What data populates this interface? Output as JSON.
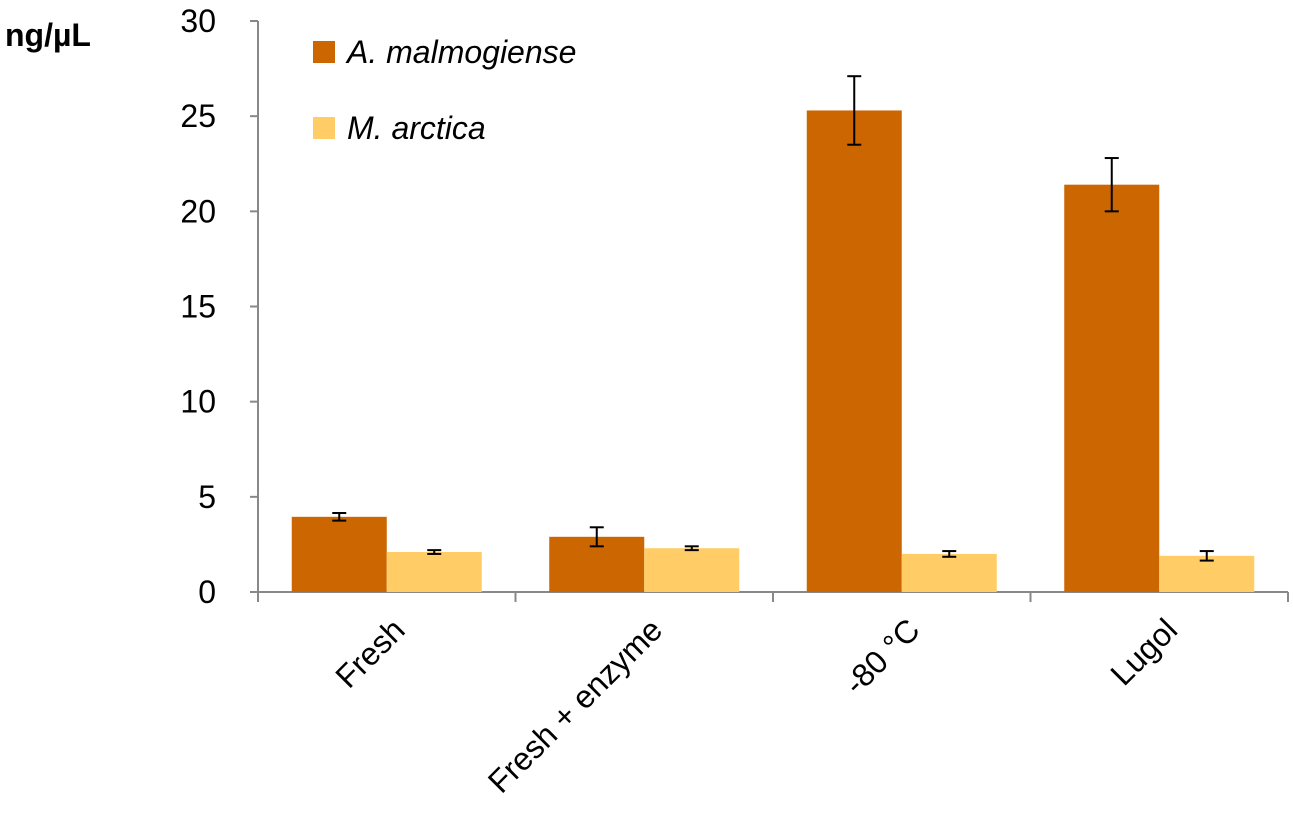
{
  "chart_data": {
    "type": "bar",
    "y_label": "ng/µL",
    "categories": [
      "Fresh",
      "Fresh + enzyme",
      "-80 °C",
      "Lugol"
    ],
    "series": [
      {
        "name": "A. malmogiense",
        "color": "#cc6600",
        "values": [
          3.95,
          2.9,
          25.3,
          21.4
        ],
        "errors": [
          0.2,
          0.5,
          1.8,
          1.4
        ]
      },
      {
        "name": "M. arctica",
        "color": "#ffcc66",
        "values": [
          2.1,
          2.3,
          2.0,
          1.9
        ],
        "errors": [
          0.1,
          0.1,
          0.15,
          0.25
        ]
      }
    ],
    "ylim": [
      0,
      30
    ],
    "yticks": [
      0,
      5,
      10,
      15,
      20,
      25,
      30
    ],
    "grid": false,
    "legend": "top-left"
  }
}
